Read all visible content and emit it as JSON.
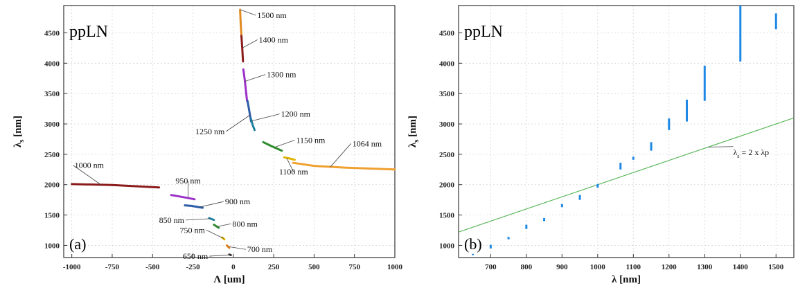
{
  "chart_data": [
    {
      "type": "line",
      "panel_label": "(a)",
      "inset_label": "ppLN",
      "xlabel": "Λ [um]",
      "ylabel": "λs [nm]",
      "xlim": [
        -1050,
        1000
      ],
      "ylim": [
        800,
        4950
      ],
      "xticks": [
        -1000,
        -750,
        -500,
        -250,
        0,
        250,
        500,
        750,
        1000
      ],
      "yticks": [
        1000,
        1500,
        2000,
        2500,
        3000,
        3500,
        4000,
        4500
      ],
      "grid": true,
      "series": [
        {
          "name": "1000 nm",
          "color": "#8b1a1a",
          "x": [
            -1000,
            -750,
            -460
          ],
          "y": [
            2010,
            1995,
            1955
          ]
        },
        {
          "name": "950 nm",
          "color": "#9b30c8",
          "x": [
            -385,
            -320,
            -240
          ],
          "y": [
            1830,
            1800,
            1760
          ]
        },
        {
          "name": "900 nm",
          "color": "#2a5ca8",
          "x": [
            -300,
            -260,
            -190
          ],
          "y": [
            1660,
            1650,
            1620
          ]
        },
        {
          "name": "850 nm",
          "color": "#1f7f9f",
          "x": [
            -150,
            -120
          ],
          "y": [
            1450,
            1420
          ]
        },
        {
          "name": "800 nm",
          "color": "#2e8b2e",
          "x": [
            -120,
            -90
          ],
          "y": [
            1340,
            1290
          ]
        },
        {
          "name": "750 nm",
          "color": "#e0b400",
          "x": [
            -70,
            -55
          ],
          "y": [
            1130,
            1100
          ]
        },
        {
          "name": "700 nm",
          "color": "#e07a10",
          "x": [
            -40,
            -25
          ],
          "y": [
            1000,
            960
          ]
        },
        {
          "name": "650 nm",
          "color": "#333333",
          "x": [
            -25,
            -15
          ],
          "y": [
            850,
            840
          ]
        },
        {
          "name": "1500 nm",
          "color": "#e08a20",
          "x": [
            42,
            45,
            50
          ],
          "y": [
            4880,
            4700,
            4450
          ]
        },
        {
          "name": "1400 nm",
          "color": "#8b1a1a",
          "x": [
            50,
            55,
            60
          ],
          "y": [
            4450,
            4250,
            4030
          ]
        },
        {
          "name": "1300 nm",
          "color": "#9b30c8",
          "x": [
            62,
            72,
            85
          ],
          "y": [
            3900,
            3700,
            3380
          ]
        },
        {
          "name": "1250 nm",
          "color": "#2a5ca8",
          "x": [
            88,
            100,
            110
          ],
          "y": [
            3380,
            3200,
            3040
          ]
        },
        {
          "name": "1200 nm",
          "color": "#1f7f9f",
          "x": [
            110,
            120,
            132
          ],
          "y": [
            3080,
            2980,
            2900
          ]
        },
        {
          "name": "1150 nm",
          "color": "#2e8b2e",
          "x": [
            185,
            240,
            300
          ],
          "y": [
            2700,
            2630,
            2560
          ]
        },
        {
          "name": "1100 nm",
          "color": "#e0b400",
          "x": [
            315,
            350,
            380
          ],
          "y": [
            2450,
            2430,
            2410
          ]
        },
        {
          "name": "1064 nm",
          "color": "#f0a030",
          "x": [
            370,
            500,
            700,
            1000
          ],
          "y": [
            2360,
            2310,
            2280,
            2250
          ]
        }
      ],
      "annotations": [
        {
          "text": "1500 nm",
          "x": 45,
          "y": 4880
        },
        {
          "text": "1400 nm",
          "x": 55,
          "y": 4250
        },
        {
          "text": "1300 nm",
          "x": 70,
          "y": 3700
        },
        {
          "text": "1250 nm",
          "x": 105,
          "y": 3150
        },
        {
          "text": "1200 nm",
          "x": 115,
          "y": 3050
        },
        {
          "text": "1150 nm",
          "x": 260,
          "y": 2620
        },
        {
          "text": "1100 nm",
          "x": 330,
          "y": 2440
        },
        {
          "text": "1064 nm",
          "x": 600,
          "y": 2290
        },
        {
          "text": "1000 nm",
          "x": -820,
          "y": 2000
        },
        {
          "text": "950 nm",
          "x": -280,
          "y": 1790
        },
        {
          "text": "900 nm",
          "x": -210,
          "y": 1630
        },
        {
          "text": "850 nm",
          "x": -145,
          "y": 1440
        },
        {
          "text": "800 nm",
          "x": -100,
          "y": 1310
        },
        {
          "text": "750 nm",
          "x": -60,
          "y": 1115
        },
        {
          "text": "700 nm",
          "x": -30,
          "y": 980
        },
        {
          "text": "650 nm",
          "x": -20,
          "y": 845
        }
      ]
    },
    {
      "type": "scatter",
      "panel_label": "(b)",
      "inset_label": "ppLN",
      "xlabel": "λ  [nm]",
      "ylabel": "λs [nm]",
      "xlim": [
        610,
        1550
      ],
      "ylim": [
        800,
        4950
      ],
      "xticks": [
        700,
        800,
        900,
        1000,
        1100,
        1200,
        1300,
        1400,
        1500
      ],
      "yticks": [
        1000,
        1500,
        2000,
        2500,
        3000,
        3500,
        4000,
        4500
      ],
      "grid": true,
      "bar_color": "#1e88e5",
      "ranges": [
        {
          "x": 650,
          "y": [
            840,
            860
          ]
        },
        {
          "x": 700,
          "y": [
            950,
            1010
          ]
        },
        {
          "x": 750,
          "y": [
            1100,
            1140
          ]
        },
        {
          "x": 800,
          "y": [
            1270,
            1340
          ]
        },
        {
          "x": 850,
          "y": [
            1400,
            1450
          ]
        },
        {
          "x": 900,
          "y": [
            1630,
            1680
          ]
        },
        {
          "x": 950,
          "y": [
            1750,
            1830
          ]
        },
        {
          "x": 1000,
          "y": [
            1950,
            2010
          ]
        },
        {
          "x": 1064,
          "y": [
            2250,
            2360
          ]
        },
        {
          "x": 1100,
          "y": [
            2410,
            2460
          ]
        },
        {
          "x": 1150,
          "y": [
            2560,
            2700
          ]
        },
        {
          "x": 1200,
          "y": [
            2900,
            3090
          ]
        },
        {
          "x": 1250,
          "y": [
            3040,
            3400
          ]
        },
        {
          "x": 1300,
          "y": [
            3380,
            3960
          ]
        },
        {
          "x": 1400,
          "y": [
            4030,
            4950
          ]
        },
        {
          "x": 1500,
          "y": [
            4560,
            4820
          ]
        }
      ],
      "reference_line": {
        "label": "λs = 2 x λp",
        "x": [
          610,
          1550
        ],
        "y": [
          1220,
          3100
        ],
        "color": "#5cb85c",
        "label_x": 1380,
        "label_y": 2490
      }
    }
  ]
}
